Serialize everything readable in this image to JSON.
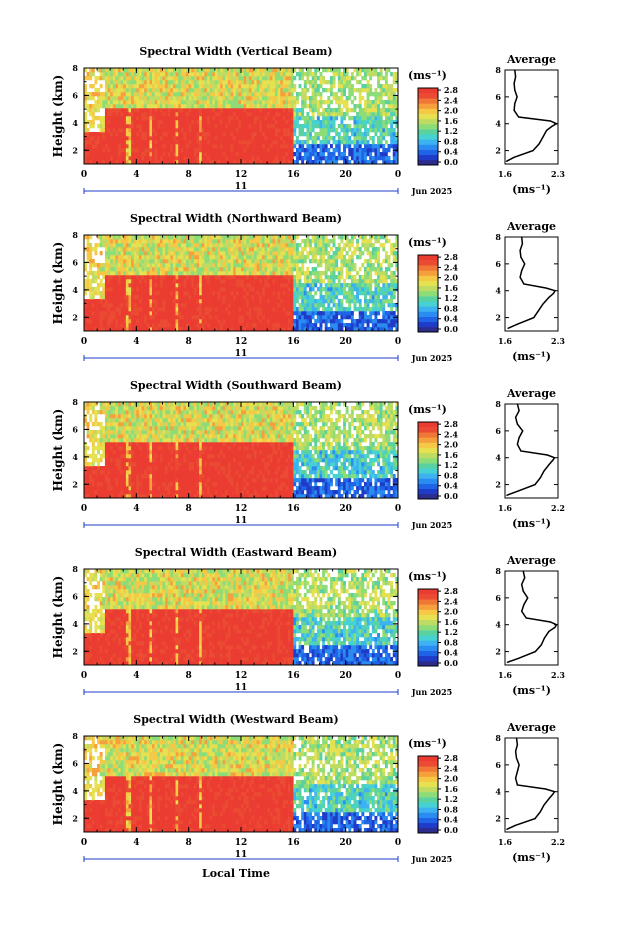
{
  "figure": {
    "xlabel": "Local Time",
    "date_label": "Jun 2025",
    "day_label": "11"
  },
  "chart_data": [
    {
      "type": "heatmap",
      "title": "Spectral Width (Vertical Beam)",
      "ylabel": "Height (km)",
      "xlabel": "Local Time",
      "x_ticks": [
        "0",
        "4",
        "8",
        "12",
        "16",
        "20",
        "0"
      ],
      "xlim": [
        0,
        24
      ],
      "y_ticks": [
        "2",
        "4",
        "6",
        "8"
      ],
      "ylim": [
        1,
        8
      ],
      "colorbar": {
        "label": "(ms⁻¹)",
        "ticks": [
          "0.0",
          "0.4",
          "0.8",
          "1.2",
          "1.6",
          "2.0",
          "2.4",
          "2.8"
        ],
        "range": [
          0,
          3
        ]
      },
      "average_profile": {
        "title": "Average",
        "xlabel": "(ms⁻¹)",
        "x_ticks": [
          "1.6",
          "2.3"
        ],
        "xlim": [
          1.6,
          2.3
        ],
        "y_ticks": [
          "2",
          "4",
          "6",
          "8"
        ],
        "ylim": [
          1,
          8
        ],
        "height_km": [
          1.2,
          1.5,
          2.0,
          2.5,
          3.0,
          3.5,
          3.8,
          4.0,
          4.2,
          4.5,
          5.0,
          5.5,
          6.0,
          6.5,
          7.0,
          7.5,
          8.0
        ],
        "width_ms": [
          1.62,
          1.72,
          1.97,
          2.05,
          2.1,
          2.15,
          2.22,
          2.28,
          2.2,
          1.78,
          1.72,
          1.73,
          1.76,
          1.73,
          1.72,
          1.74,
          1.73
        ]
      }
    },
    {
      "type": "heatmap",
      "title": "Spectral Width (Northward Beam)",
      "ylabel": "Height (km)",
      "xlabel": "Local Time",
      "x_ticks": [
        "0",
        "4",
        "8",
        "12",
        "16",
        "20",
        "0"
      ],
      "xlim": [
        0,
        24
      ],
      "y_ticks": [
        "2",
        "4",
        "6",
        "8"
      ],
      "ylim": [
        1,
        8
      ],
      "colorbar": {
        "label": "(ms⁻¹)",
        "ticks": [
          "0.0",
          "0.4",
          "0.8",
          "1.2",
          "1.6",
          "2.0",
          "2.4",
          "2.8"
        ],
        "range": [
          0,
          3
        ]
      },
      "average_profile": {
        "title": "Average",
        "xlabel": "(ms⁻¹)",
        "x_ticks": [
          "1.6",
          "2.3"
        ],
        "xlim": [
          1.6,
          2.3
        ],
        "y_ticks": [
          "2",
          "4",
          "6",
          "8"
        ],
        "ylim": [
          1,
          8
        ],
        "height_km": [
          1.2,
          1.5,
          2.0,
          2.5,
          3.0,
          3.5,
          3.8,
          4.0,
          4.2,
          4.5,
          5.0,
          5.5,
          6.0,
          6.5,
          7.0,
          7.5,
          8.0
        ],
        "width_ms": [
          1.64,
          1.76,
          1.98,
          2.04,
          2.1,
          2.18,
          2.24,
          2.26,
          2.14,
          1.85,
          1.8,
          1.82,
          1.86,
          1.81,
          1.8,
          1.83,
          1.82
        ]
      }
    },
    {
      "type": "heatmap",
      "title": "Spectral Width (Southward Beam)",
      "ylabel": "Height (km)",
      "xlabel": "Local Time",
      "x_ticks": [
        "0",
        "4",
        "8",
        "12",
        "16",
        "20",
        "0"
      ],
      "xlim": [
        0,
        24
      ],
      "y_ticks": [
        "2",
        "4",
        "6",
        "8"
      ],
      "ylim": [
        1,
        8
      ],
      "colorbar": {
        "label": "(ms⁻¹)",
        "ticks": [
          "0.0",
          "0.4",
          "0.8",
          "1.2",
          "1.6",
          "2.0",
          "2.4",
          "2.8"
        ],
        "range": [
          0,
          3
        ]
      },
      "average_profile": {
        "title": "Average",
        "xlabel": "(ms⁻¹)",
        "x_ticks": [
          "1.6",
          "2.2"
        ],
        "xlim": [
          1.6,
          2.2
        ],
        "y_ticks": [
          "2",
          "4",
          "6",
          "8"
        ],
        "ylim": [
          1,
          8
        ],
        "height_km": [
          1.2,
          1.5,
          2.0,
          2.5,
          3.0,
          3.5,
          3.8,
          4.0,
          4.2,
          4.5,
          5.0,
          5.5,
          6.0,
          6.5,
          7.0,
          7.5,
          8.0
        ],
        "width_ms": [
          1.62,
          1.74,
          1.94,
          2.0,
          2.04,
          2.1,
          2.14,
          2.16,
          2.08,
          1.78,
          1.74,
          1.76,
          1.8,
          1.74,
          1.72,
          1.76,
          1.74
        ]
      }
    },
    {
      "type": "heatmap",
      "title": "Spectral Width (Eastward Beam)",
      "ylabel": "Height (km)",
      "xlabel": "Local Time",
      "x_ticks": [
        "0",
        "4",
        "8",
        "12",
        "16",
        "20",
        "0"
      ],
      "xlim": [
        0,
        24
      ],
      "y_ticks": [
        "2",
        "4",
        "6",
        "8"
      ],
      "ylim": [
        1,
        8
      ],
      "colorbar": {
        "label": "(ms⁻¹)",
        "ticks": [
          "0.0",
          "0.4",
          "0.8",
          "1.2",
          "1.6",
          "2.0",
          "2.4",
          "2.8"
        ],
        "range": [
          0,
          3
        ]
      },
      "average_profile": {
        "title": "Average",
        "xlabel": "(ms⁻¹)",
        "x_ticks": [
          "1.6",
          "2.3"
        ],
        "xlim": [
          1.6,
          2.3
        ],
        "y_ticks": [
          "2",
          "4",
          "6",
          "8"
        ],
        "ylim": [
          1,
          8
        ],
        "height_km": [
          1.2,
          1.5,
          2.0,
          2.5,
          3.0,
          3.5,
          3.8,
          4.0,
          4.2,
          4.5,
          5.0,
          5.5,
          6.0,
          6.5,
          7.0,
          7.5,
          8.0
        ],
        "width_ms": [
          1.63,
          1.78,
          2.0,
          2.08,
          2.12,
          2.18,
          2.26,
          2.28,
          2.2,
          1.88,
          1.82,
          1.85,
          1.9,
          1.84,
          1.82,
          1.86,
          1.84
        ]
      }
    },
    {
      "type": "heatmap",
      "title": "Spectral Width (Westward Beam)",
      "ylabel": "Height (km)",
      "xlabel": "Local Time",
      "x_ticks": [
        "0",
        "4",
        "8",
        "12",
        "16",
        "20",
        "0"
      ],
      "xlim": [
        0,
        24
      ],
      "y_ticks": [
        "2",
        "4",
        "6",
        "8"
      ],
      "ylim": [
        1,
        8
      ],
      "colorbar": {
        "label": "(ms⁻¹)",
        "ticks": [
          "0.0",
          "0.4",
          "0.8",
          "1.2",
          "1.6",
          "2.0",
          "2.4",
          "2.8"
        ],
        "range": [
          0,
          3
        ]
      },
      "average_profile": {
        "title": "Average",
        "xlabel": "(ms⁻¹)",
        "x_ticks": [
          "1.6",
          "2.2"
        ],
        "xlim": [
          1.6,
          2.2
        ],
        "y_ticks": [
          "2",
          "4",
          "6",
          "8"
        ],
        "ylim": [
          1,
          8
        ],
        "height_km": [
          1.2,
          1.5,
          2.0,
          2.5,
          3.0,
          3.5,
          3.8,
          4.0,
          4.2,
          4.5,
          5.0,
          5.5,
          6.0,
          6.5,
          7.0,
          7.5,
          8.0
        ],
        "width_ms": [
          1.62,
          1.72,
          1.94,
          2.0,
          2.04,
          2.1,
          2.14,
          2.16,
          2.06,
          1.74,
          1.72,
          1.74,
          1.76,
          1.73,
          1.72,
          1.74,
          1.73
        ]
      }
    }
  ]
}
